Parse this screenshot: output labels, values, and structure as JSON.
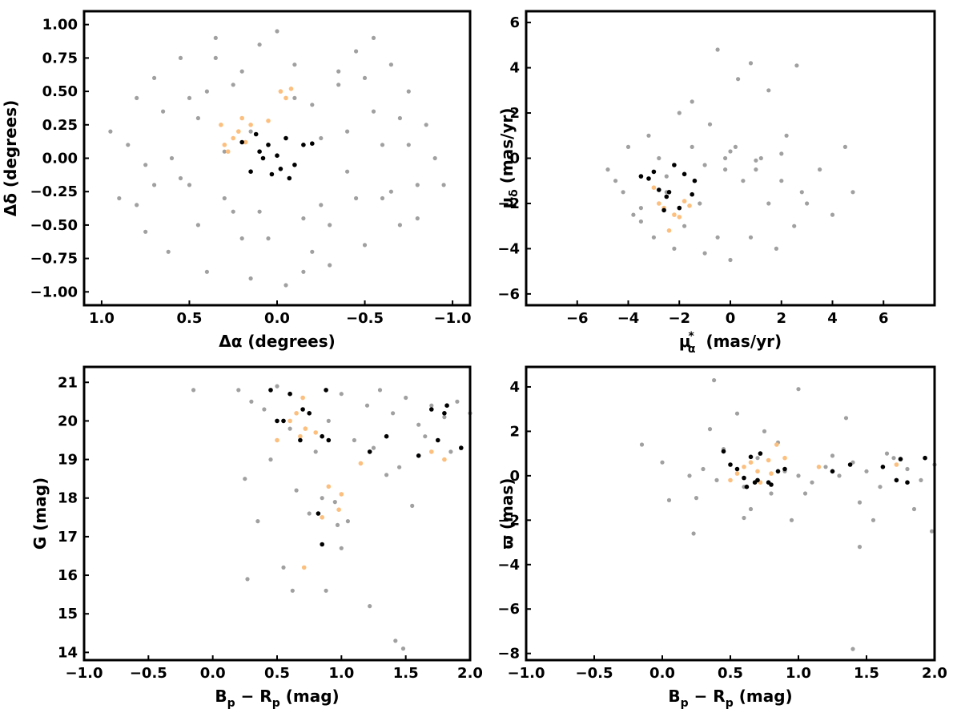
{
  "colors": {
    "field": "#a0a0a0",
    "member": "#000000",
    "candidate": "#fcbf7e"
  },
  "chart_data": [
    {
      "type": "scatter",
      "panel": "top-left",
      "xlim": [
        1.1,
        -1.1
      ],
      "ylim": [
        -1.1,
        1.1
      ],
      "x_ticks": [
        1.0,
        0.5,
        0.0,
        -0.5,
        -1.0
      ],
      "x_tick_labels": [
        "1.0",
        "0.5",
        "0.0",
        "−0.5",
        "−1.0"
      ],
      "y_ticks": [
        1.0,
        0.75,
        0.5,
        0.25,
        0.0,
        -0.25,
        -0.5,
        -0.75,
        -1.0
      ],
      "y_tick_labels": [
        "1.00",
        "0.75",
        "0.50",
        "0.25",
        "0.00",
        "−0.25",
        "−0.50",
        "−0.75",
        "−1.00"
      ],
      "xlabel": "Δα (degrees)",
      "ylabel": "Δδ (degrees)",
      "series": [
        {
          "role": "field",
          "x": [
            0.95,
            0.9,
            0.85,
            0.8,
            0.75,
            0.7,
            0.62,
            0.55,
            0.5,
            0.45,
            0.4,
            0.35,
            0.3,
            0.25,
            0.2,
            0.15,
            0.1,
            0.05,
            0.0,
            -0.05,
            -0.1,
            -0.15,
            -0.2,
            -0.25,
            -0.3,
            -0.35,
            -0.4,
            -0.45,
            -0.5,
            -0.55,
            -0.6,
            -0.65,
            -0.7,
            -0.75,
            -0.8,
            -0.85,
            -0.9,
            -0.95,
            0.6,
            0.4,
            0.2,
            -0.2,
            -0.4,
            -0.6,
            0.7,
            -0.7,
            0.3,
            -0.3,
            0.5,
            -0.5,
            0.1,
            -0.1,
            0.8,
            -0.8,
            0.35,
            -0.35,
            0.65,
            -0.65,
            0.15,
            -0.15,
            0.45,
            -0.45,
            0.25,
            -0.25,
            0.55,
            -0.55,
            0.75,
            -0.75
          ],
          "y": [
            0.2,
            -0.3,
            0.1,
            0.45,
            -0.55,
            0.6,
            -0.7,
            0.75,
            -0.2,
            0.3,
            -0.85,
            0.9,
            0.05,
            -0.4,
            0.65,
            -0.9,
            0.85,
            -0.6,
            0.95,
            -0.95,
            0.7,
            -0.45,
            0.4,
            0.15,
            -0.8,
            0.55,
            -0.1,
            0.8,
            -0.65,
            0.35,
            -0.3,
            0.7,
            -0.5,
            0.5,
            -0.2,
            0.25,
            0.0,
            -0.2,
            0.0,
            0.5,
            -0.6,
            -0.7,
            0.2,
            0.1,
            -0.2,
            0.3,
            -0.3,
            -0.5,
            0.45,
            0.6,
            -0.4,
            0.45,
            -0.35,
            -0.45,
            0.75,
            0.65,
            0.35,
            -0.25,
            0.2,
            -0.85,
            -0.5,
            -0.3,
            0.55,
            -0.35,
            -0.15,
            0.9,
            -0.05,
            0.1
          ]
        },
        {
          "role": "member",
          "x": [
            0.1,
            0.05,
            0.0,
            -0.05,
            -0.1,
            0.15,
            0.08,
            -0.02,
            0.2,
            -0.15,
            0.03,
            -0.07,
            0.12,
            -0.2
          ],
          "y": [
            0.05,
            0.1,
            0.02,
            0.15,
            -0.05,
            -0.1,
            0.0,
            -0.08,
            0.12,
            0.1,
            -0.12,
            -0.15,
            0.18,
            0.11
          ]
        },
        {
          "role": "candidate",
          "x": [
            0.3,
            0.25,
            0.2,
            0.28,
            0.22,
            0.15,
            -0.02,
            -0.05,
            -0.08,
            0.05,
            0.32,
            0.18
          ],
          "y": [
            0.1,
            0.15,
            0.3,
            0.05,
            0.2,
            0.25,
            0.5,
            0.45,
            0.52,
            0.28,
            0.25,
            0.12
          ]
        }
      ]
    },
    {
      "type": "scatter",
      "panel": "top-right",
      "xlim": [
        -8,
        8
      ],
      "ylim": [
        -6.5,
        6.5
      ],
      "x_ticks": [
        -6,
        -4,
        -2,
        0,
        2,
        4,
        6
      ],
      "x_tick_labels": [
        "−6",
        "−4",
        "−2",
        "0",
        "2",
        "4",
        "6"
      ],
      "y_ticks": [
        6,
        4,
        2,
        0,
        -2,
        -4,
        -6
      ],
      "y_tick_labels": [
        "6",
        "4",
        "2",
        "0",
        "−2",
        "−4",
        "−6"
      ],
      "xlabel": "μ",
      "xlabel_sub": "α",
      "xlabel_sup": "*",
      "xlabel_unit": " (mas/yr)",
      "ylabel": "μ",
      "ylabel_sub": "δ",
      "ylabel_unit": " (mas/yr)",
      "series": [
        {
          "role": "field",
          "x": [
            -4.8,
            -4.5,
            -4.2,
            -4.0,
            -3.8,
            -3.5,
            -3.2,
            -3.0,
            -2.8,
            -2.5,
            -2.2,
            -2.0,
            -1.8,
            -1.5,
            -1.2,
            -1.0,
            -0.8,
            -0.5,
            -0.2,
            0.0,
            0.2,
            0.5,
            0.8,
            1.0,
            1.2,
            1.5,
            1.8,
            2.0,
            2.2,
            2.5,
            2.8,
            3.0,
            3.5,
            4.0,
            4.5,
            4.8,
            -0.5,
            0.3,
            0.8,
            -1.5,
            1.5,
            2.6,
            0.0,
            -2.5,
            -3.5,
            -1.0,
            1.0,
            2.0,
            -0.2
          ],
          "y": [
            -0.5,
            -1.0,
            -1.5,
            0.5,
            -2.5,
            -2.8,
            1.0,
            -3.5,
            0.0,
            -1.5,
            -4.0,
            2.0,
            -3.0,
            0.5,
            -2.0,
            -4.2,
            1.5,
            -3.5,
            0.0,
            -4.5,
            0.5,
            -1.0,
            -3.5,
            -0.5,
            0.0,
            -2.0,
            -4.0,
            -1.0,
            1.0,
            -3.0,
            -1.5,
            -2.0,
            -0.5,
            -2.5,
            0.5,
            -1.5,
            4.8,
            3.5,
            4.2,
            2.5,
            3.0,
            4.1,
            0.3,
            -0.8,
            -2.2,
            -0.3,
            -0.1,
            0.2,
            -0.5
          ]
        },
        {
          "role": "member",
          "x": [
            -3.5,
            -3.0,
            -2.8,
            -2.5,
            -2.2,
            -2.0,
            -1.8,
            -1.5,
            -1.4,
            -2.6,
            -3.2,
            -2.4
          ],
          "y": [
            -0.8,
            -0.6,
            -1.4,
            -1.7,
            -0.3,
            -2.2,
            -0.7,
            -1.6,
            -1.0,
            -2.3,
            -0.9,
            -1.5
          ]
        },
        {
          "role": "candidate",
          "x": [
            -3.0,
            -2.6,
            -2.2,
            -1.8,
            -1.6,
            -2.4,
            -2.0,
            -2.8
          ],
          "y": [
            -1.3,
            -2.2,
            -2.5,
            -1.9,
            -2.1,
            -3.2,
            -2.6,
            -2.0
          ]
        }
      ]
    },
    {
      "type": "scatter",
      "panel": "bottom-left",
      "xlim": [
        -1.0,
        2.0
      ],
      "ylim": [
        13.8,
        21.4
      ],
      "x_ticks": [
        -1.0,
        -0.5,
        0.0,
        0.5,
        1.0,
        1.5,
        2.0
      ],
      "x_tick_labels": [
        "−1.0",
        "−0.5",
        "0.0",
        "0.5",
        "1.0",
        "1.5",
        "2.0"
      ],
      "y_ticks": [
        21,
        20,
        19,
        18,
        17,
        16,
        15,
        14
      ],
      "y_tick_labels": [
        "21",
        "20",
        "19",
        "18",
        "17",
        "16",
        "15",
        "14"
      ],
      "xlabel": "B",
      "xlabel_sub": "p",
      "xlabel_mid": " − R",
      "xlabel_sub2": "p",
      "xlabel_unit": " (mag)",
      "ylabel": "G (mag)",
      "series": [
        {
          "role": "field",
          "x": [
            0.2,
            0.3,
            0.4,
            0.5,
            0.6,
            0.7,
            0.8,
            0.9,
            1.0,
            1.1,
            1.2,
            1.3,
            1.4,
            1.5,
            1.6,
            1.7,
            1.8,
            1.9,
            2.0,
            0.25,
            0.45,
            0.65,
            0.85,
            1.05,
            1.25,
            1.45,
            1.65,
            1.85,
            0.55,
            0.75,
            0.95,
            0.35,
            1.35,
            1.55,
            -0.15,
            0.27,
            0.62,
            1.22,
            1.42,
            1.48,
            0.88,
            1.0,
            0.97
          ],
          "y": [
            20.8,
            20.5,
            20.3,
            20.9,
            19.8,
            20.6,
            19.2,
            20.0,
            20.7,
            19.5,
            20.4,
            20.8,
            20.2,
            20.6,
            19.9,
            20.4,
            20.1,
            20.5,
            20.2,
            18.5,
            19.0,
            18.2,
            18.0,
            17.4,
            19.3,
            18.8,
            19.6,
            19.2,
            16.2,
            17.6,
            17.9,
            17.4,
            18.6,
            17.8,
            20.8,
            15.9,
            15.6,
            15.2,
            14.3,
            14.1,
            15.6,
            16.7,
            17.3
          ]
        },
        {
          "role": "member",
          "x": [
            0.45,
            0.5,
            0.55,
            0.6,
            0.68,
            0.7,
            0.75,
            0.82,
            0.85,
            0.88,
            0.9,
            1.35,
            1.6,
            1.7,
            1.75,
            1.82,
            1.93,
            1.8,
            1.22,
            0.85
          ],
          "y": [
            20.8,
            20.0,
            20.0,
            20.7,
            19.5,
            20.3,
            20.2,
            17.6,
            19.6,
            20.8,
            19.5,
            19.6,
            19.1,
            20.3,
            19.5,
            20.4,
            19.3,
            20.2,
            19.2,
            16.8
          ]
        },
        {
          "role": "candidate",
          "x": [
            0.5,
            0.6,
            0.65,
            0.68,
            0.7,
            0.72,
            0.8,
            0.85,
            0.9,
            1.0,
            0.98,
            1.15,
            1.7,
            1.8,
            0.71
          ],
          "y": [
            19.5,
            20.0,
            20.2,
            19.6,
            20.6,
            19.8,
            19.7,
            17.5,
            18.3,
            18.1,
            17.7,
            18.9,
            19.2,
            19.0,
            16.2
          ]
        }
      ]
    },
    {
      "type": "scatter",
      "panel": "bottom-right",
      "xlim": [
        -1.0,
        2.0
      ],
      "ylim": [
        -8.3,
        4.9
      ],
      "x_ticks": [
        -1.0,
        -0.5,
        0.0,
        0.5,
        1.0,
        1.5,
        2.0
      ],
      "x_tick_labels": [
        "−1.0",
        "−0.5",
        "0.0",
        "0.5",
        "1.0",
        "1.5",
        "2.0"
      ],
      "y_ticks": [
        4,
        2,
        0,
        -2,
        -4,
        -6,
        -8
      ],
      "y_tick_labels": [
        "4",
        "2",
        "0",
        "−2",
        "−4",
        "−6",
        "−8"
      ],
      "xlabel": "B",
      "xlabel_sub": "p",
      "xlabel_mid": " − R",
      "xlabel_sub2": "p",
      "xlabel_unit": " (mag)",
      "ylabel": "ϖ (mas)",
      "series": [
        {
          "role": "field",
          "x": [
            0.2,
            0.3,
            0.4,
            0.5,
            0.6,
            0.7,
            0.8,
            0.9,
            1.0,
            1.1,
            1.2,
            1.3,
            1.4,
            1.5,
            1.6,
            1.7,
            1.8,
            1.9,
            2.0,
            0.25,
            0.45,
            0.65,
            0.85,
            1.05,
            1.25,
            1.45,
            1.65,
            1.85,
            0.55,
            0.75,
            0.95,
            0.35,
            1.35,
            1.55,
            -0.15,
            0.0,
            0.38,
            1.4,
            1.45,
            1.98,
            0.23,
            1.0,
            0.6,
            0.05
          ],
          "y": [
            0.0,
            0.3,
            -0.2,
            0.5,
            -0.5,
            0.8,
            -0.8,
            0.2,
            0.0,
            -0.3,
            0.4,
            0.0,
            0.6,
            0.2,
            -0.5,
            0.8,
            0.3,
            -0.2,
            0.5,
            -1.0,
            1.2,
            -1.5,
            1.5,
            -0.8,
            0.9,
            -1.2,
            1.0,
            -1.5,
            2.8,
            2.0,
            -2.0,
            2.1,
            2.6,
            -2.0,
            1.4,
            0.6,
            4.3,
            -7.8,
            -3.2,
            -2.5,
            -2.6,
            3.9,
            -1.9,
            -1.1
          ]
        },
        {
          "role": "member",
          "x": [
            0.45,
            0.5,
            0.55,
            0.62,
            0.65,
            0.7,
            0.72,
            0.78,
            0.8,
            0.85,
            0.9,
            1.25,
            1.38,
            1.62,
            1.72,
            1.75,
            1.8,
            1.93,
            0.6,
            0.68
          ],
          "y": [
            1.1,
            0.5,
            0.3,
            -0.5,
            0.85,
            -0.2,
            1.0,
            -0.3,
            -0.4,
            0.2,
            0.3,
            0.2,
            0.5,
            0.4,
            -0.2,
            0.75,
            -0.3,
            0.8,
            -0.1,
            -0.3
          ]
        },
        {
          "role": "candidate",
          "x": [
            0.5,
            0.55,
            0.6,
            0.65,
            0.7,
            0.72,
            0.78,
            0.8,
            0.84,
            0.9,
            1.15,
            1.72
          ],
          "y": [
            -0.2,
            0.1,
            0.4,
            0.6,
            0.2,
            -0.3,
            0.7,
            0.1,
            1.4,
            0.8,
            0.4,
            0.5
          ]
        }
      ]
    }
  ]
}
